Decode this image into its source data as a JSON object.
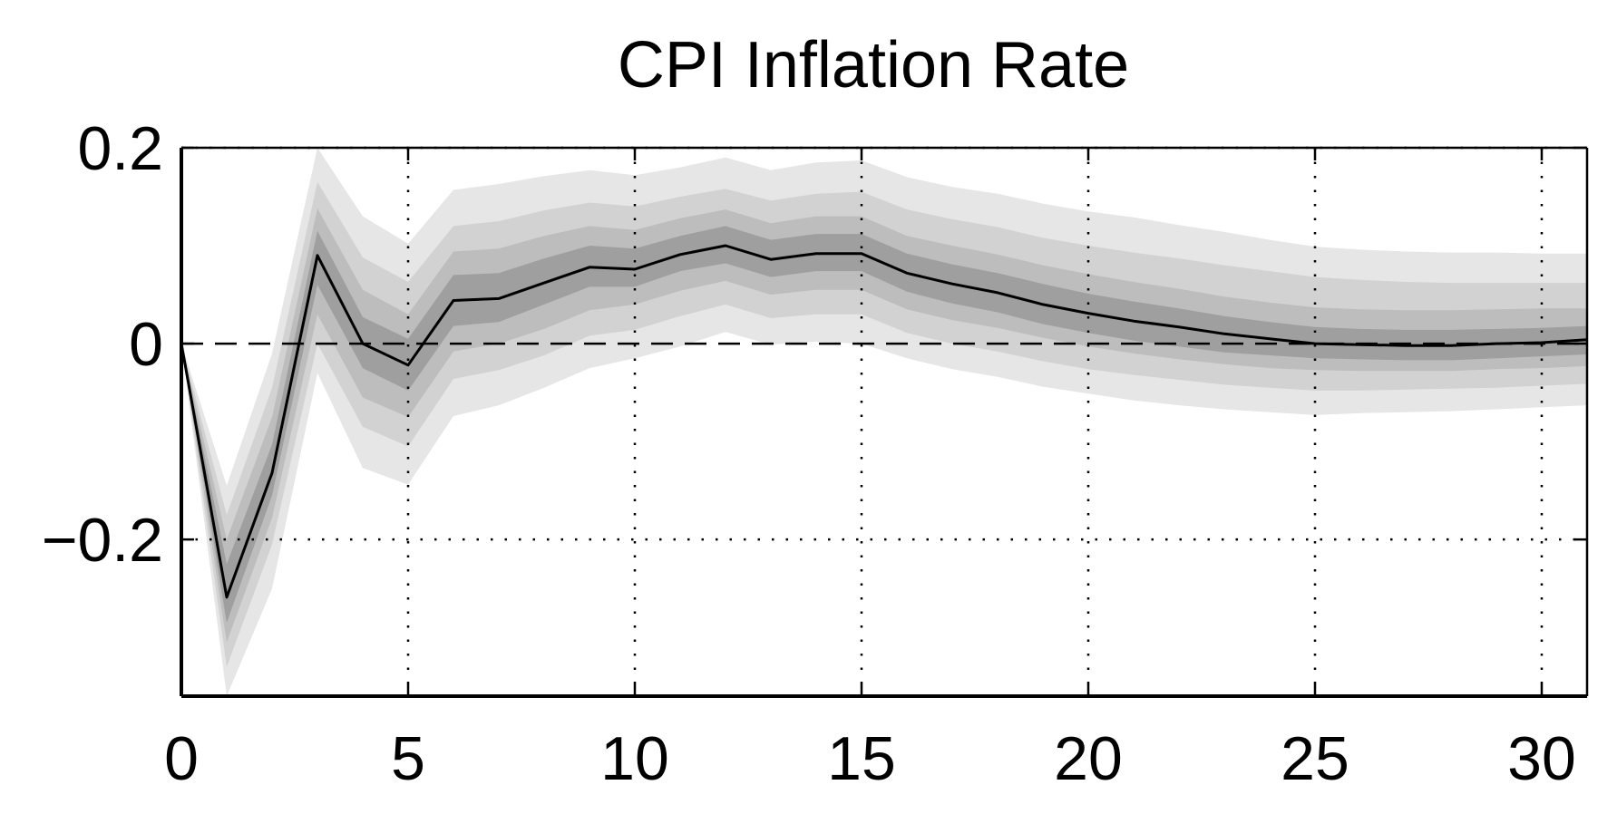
{
  "chart_data": {
    "type": "area",
    "title": "CPI Inflation Rate",
    "xlabel": "",
    "ylabel": "",
    "xlim": [
      0,
      31
    ],
    "ylim": [
      -0.36,
      0.2
    ],
    "x_ticks": [
      0,
      5,
      10,
      15,
      20,
      25,
      30
    ],
    "x_tick_labels": [
      "0",
      "5",
      "10",
      "15",
      "20",
      "25",
      "30"
    ],
    "y_ticks": [
      -0.2,
      0,
      0.2
    ],
    "y_tick_labels": [
      "−0.2",
      "0",
      "0.2"
    ],
    "grid": "dotted",
    "zero_line": "dashed",
    "legend": "none",
    "colors": {
      "band_outer": "#e6e6e6",
      "band_2": "#d2d2d2",
      "band_3": "#bdbdbd",
      "band_inner": "#9f9f9f",
      "line": "#000000"
    },
    "x": [
      0,
      1,
      2,
      3,
      4,
      5,
      6,
      7,
      8,
      9,
      10,
      11,
      12,
      13,
      14,
      15,
      16,
      17,
      18,
      19,
      20,
      21,
      22,
      23,
      24,
      25,
      26,
      27,
      28,
      29,
      30,
      31
    ],
    "median": [
      0,
      -0.259,
      -0.132,
      0.09,
      0.0,
      -0.022,
      0.044,
      0.046,
      0.062,
      0.078,
      0.076,
      0.091,
      0.1,
      0.086,
      0.092,
      0.092,
      0.072,
      0.061,
      0.052,
      0.04,
      0.031,
      0.023,
      0.017,
      0.01,
      0.005,
      0.0,
      -0.001,
      -0.002,
      -0.002,
      0.0,
      0.001,
      0.004
    ],
    "bands": [
      {
        "upper": [
          0,
          -0.145,
          -0.01,
          0.2,
          0.13,
          0.102,
          0.157,
          0.163,
          0.171,
          0.177,
          0.172,
          0.18,
          0.19,
          0.177,
          0.185,
          0.187,
          0.17,
          0.16,
          0.153,
          0.143,
          0.135,
          0.129,
          0.121,
          0.114,
          0.106,
          0.099,
          0.096,
          0.094,
          0.093,
          0.093,
          0.092,
          0.092
        ],
        "lower": [
          0,
          -0.36,
          -0.25,
          -0.03,
          -0.127,
          -0.144,
          -0.074,
          -0.063,
          -0.045,
          -0.025,
          -0.015,
          -0.003,
          0.012,
          -0.001,
          0.002,
          0.0,
          -0.015,
          -0.026,
          -0.034,
          -0.044,
          -0.051,
          -0.058,
          -0.063,
          -0.067,
          -0.07,
          -0.073,
          -0.071,
          -0.07,
          -0.069,
          -0.067,
          -0.065,
          -0.063
        ]
      },
      {
        "upper": [
          0,
          -0.175,
          -0.045,
          0.165,
          0.088,
          0.063,
          0.12,
          0.125,
          0.136,
          0.144,
          0.14,
          0.15,
          0.158,
          0.146,
          0.153,
          0.155,
          0.137,
          0.127,
          0.119,
          0.108,
          0.1,
          0.093,
          0.087,
          0.08,
          0.074,
          0.068,
          0.065,
          0.063,
          0.062,
          0.062,
          0.062,
          0.062
        ],
        "lower": [
          0,
          -0.33,
          -0.205,
          0.0,
          -0.085,
          -0.105,
          -0.036,
          -0.027,
          -0.012,
          0.008,
          0.014,
          0.028,
          0.04,
          0.026,
          0.03,
          0.03,
          0.011,
          0.0,
          -0.008,
          -0.018,
          -0.026,
          -0.032,
          -0.037,
          -0.042,
          -0.045,
          -0.048,
          -0.048,
          -0.047,
          -0.046,
          -0.045,
          -0.043,
          -0.041
        ]
      },
      {
        "upper": [
          0,
          -0.2,
          -0.075,
          0.138,
          0.055,
          0.03,
          0.094,
          0.097,
          0.11,
          0.12,
          0.116,
          0.128,
          0.137,
          0.123,
          0.13,
          0.13,
          0.11,
          0.1,
          0.091,
          0.08,
          0.071,
          0.063,
          0.056,
          0.048,
          0.042,
          0.037,
          0.035,
          0.034,
          0.034,
          0.035,
          0.036,
          0.036
        ],
        "lower": [
          0,
          -0.305,
          -0.178,
          0.03,
          -0.055,
          -0.075,
          -0.008,
          0.0,
          0.015,
          0.034,
          0.04,
          0.054,
          0.064,
          0.05,
          0.055,
          0.055,
          0.035,
          0.024,
          0.016,
          0.006,
          -0.003,
          -0.01,
          -0.016,
          -0.021,
          -0.025,
          -0.027,
          -0.028,
          -0.028,
          -0.028,
          -0.026,
          -0.025,
          -0.023
        ]
      },
      {
        "upper": [
          0,
          -0.225,
          -0.103,
          0.115,
          0.027,
          0.005,
          0.07,
          0.072,
          0.087,
          0.1,
          0.097,
          0.11,
          0.12,
          0.106,
          0.112,
          0.112,
          0.092,
          0.081,
          0.072,
          0.061,
          0.051,
          0.043,
          0.036,
          0.028,
          0.022,
          0.017,
          0.015,
          0.014,
          0.014,
          0.015,
          0.016,
          0.018
        ],
        "lower": [
          0,
          -0.285,
          -0.155,
          0.06,
          -0.025,
          -0.048,
          0.018,
          0.022,
          0.04,
          0.058,
          0.058,
          0.074,
          0.082,
          0.068,
          0.074,
          0.074,
          0.053,
          0.041,
          0.032,
          0.02,
          0.011,
          0.003,
          -0.003,
          -0.009,
          -0.012,
          -0.015,
          -0.016,
          -0.017,
          -0.017,
          -0.015,
          -0.013,
          -0.011
        ]
      }
    ]
  }
}
